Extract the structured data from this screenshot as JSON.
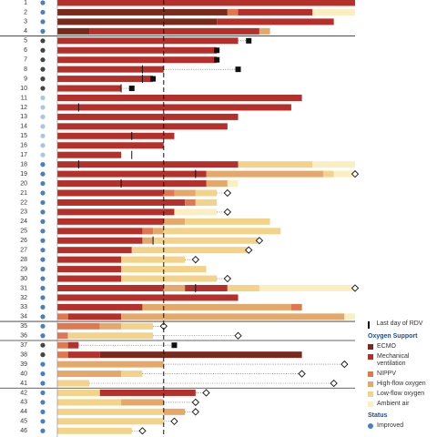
{
  "chart_data": {
    "type": "swimmer",
    "xlim": [
      0,
      28
    ],
    "rdv_reference_day": 10,
    "supports": [
      {
        "name": "ECMO",
        "color": "#7a2a1c"
      },
      {
        "name": "Mechanical ventilation",
        "color": "#b5302a"
      },
      {
        "name": "NIPPV",
        "color": "#e0774f"
      },
      {
        "name": "High-flow oxygen",
        "color": "#e3a86a"
      },
      {
        "name": "Low-flow oxygen",
        "color": "#f3d28a"
      },
      {
        "name": "Ambient air",
        "color": "#fbeec0"
      }
    ],
    "legend_title": "Oxygen Support",
    "rdv_label": "Last day of RDV",
    "status_title": "Status",
    "statuses": [
      {
        "name": "Improved",
        "color": "#4a7fc1"
      }
    ],
    "rows": [
      {
        "label": "1",
        "status_color": "#4a7fc1",
        "segments": [
          {
            "support": 1,
            "days": 28
          }
        ]
      },
      {
        "label": "2",
        "status_color": "#4a7fc1",
        "segments": [
          {
            "support": 0,
            "days": 16
          },
          {
            "support": 2,
            "days": 1
          },
          {
            "support": 1,
            "days": 7
          },
          {
            "support": 5,
            "days": 4
          }
        ]
      },
      {
        "label": "3",
        "status_color": "#4a7fc1",
        "segments": [
          {
            "support": 0,
            "days": 15
          },
          {
            "support": 1,
            "days": 11
          }
        ]
      },
      {
        "label": "4",
        "status_color": "#4a7fc1",
        "segments": [
          {
            "support": 0,
            "days": 3
          },
          {
            "support": 1,
            "days": 16
          },
          {
            "support": 3,
            "days": 1
          }
        ]
      },
      {
        "label": "5",
        "status_color": "#444444",
        "segments": [
          {
            "support": 1,
            "days": 17
          }
        ],
        "death": 18
      },
      {
        "label": "6",
        "status_color": "#444444",
        "segments": [
          {
            "support": 1,
            "days": 15
          }
        ],
        "death": 15
      },
      {
        "label": "7",
        "status_color": "#444444",
        "segments": [
          {
            "support": 1,
            "days": 15
          }
        ],
        "death": 15
      },
      {
        "label": "8",
        "status_color": "#444444",
        "segments": [
          {
            "support": 1,
            "days": 10
          }
        ],
        "death": 17,
        "rdv": 8
      },
      {
        "label": "9",
        "status_color": "#444444",
        "segments": [
          {
            "support": 1,
            "days": 9
          }
        ],
        "death": 9,
        "rdv": 8
      },
      {
        "label": "10",
        "status_color": "#444444",
        "segments": [
          {
            "support": 1,
            "days": 6
          }
        ],
        "death": 7,
        "rdv": 6
      },
      {
        "label": "11",
        "status_color": "#a9c6e4",
        "segments": [
          {
            "support": 1,
            "days": 23
          }
        ]
      },
      {
        "label": "12",
        "status_color": "#a9c6e4",
        "segments": [
          {
            "support": 1,
            "days": 22
          }
        ],
        "rdv": 2
      },
      {
        "label": "13",
        "status_color": "#a9c6e4",
        "segments": [
          {
            "support": 1,
            "days": 17
          }
        ]
      },
      {
        "label": "14",
        "status_color": "#a9c6e4",
        "segments": [
          {
            "support": 1,
            "days": 16
          }
        ]
      },
      {
        "label": "15",
        "status_color": "#a9c6e4",
        "segments": [
          {
            "support": 1,
            "days": 11
          }
        ],
        "rdv": 7
      },
      {
        "label": "16",
        "status_color": "#a9c6e4",
        "segments": [
          {
            "support": 1,
            "days": 10
          }
        ]
      },
      {
        "label": "17",
        "status_color": "#a9c6e4",
        "segments": [
          {
            "support": 1,
            "days": 6
          }
        ],
        "rdv": 7
      },
      {
        "label": "18",
        "status_color": "#4a7fc1",
        "segments": [
          {
            "support": 1,
            "days": 17
          },
          {
            "support": 4,
            "days": 7
          },
          {
            "support": 5,
            "days": 4
          }
        ],
        "rdv": 2
      },
      {
        "label": "19",
        "status_color": "#4a7fc1",
        "segments": [
          {
            "support": 1,
            "days": 14
          },
          {
            "support": 3,
            "days": 11
          },
          {
            "support": 4,
            "days": 1
          },
          {
            "support": 5,
            "days": 2
          }
        ],
        "discharge": 28,
        "rdv": 13
      },
      {
        "label": "20",
        "status_color": "#4a7fc1",
        "segments": [
          {
            "support": 1,
            "days": 14
          },
          {
            "support": 3,
            "days": 2
          },
          {
            "support": 5,
            "days": 1
          }
        ],
        "rdv": 6
      },
      {
        "label": "21",
        "status_color": "#4a7fc1",
        "segments": [
          {
            "support": 1,
            "days": 10
          },
          {
            "support": 2,
            "days": 1
          },
          {
            "support": 3,
            "days": 2
          },
          {
            "support": 4,
            "days": 2
          }
        ],
        "discharge": 16
      },
      {
        "label": "22",
        "status_color": "#4a7fc1",
        "segments": [
          {
            "support": 1,
            "days": 12
          },
          {
            "support": 2,
            "days": 1
          },
          {
            "support": 4,
            "days": 2
          }
        ]
      },
      {
        "label": "23",
        "status_color": "#4a7fc1",
        "segments": [
          {
            "support": 1,
            "days": 11
          },
          {
            "support": 5,
            "days": 4
          }
        ],
        "discharge": 16
      },
      {
        "label": "24",
        "status_color": "#4a7fc1",
        "segments": [
          {
            "support": 1,
            "days": 10
          },
          {
            "support": 3,
            "days": 2
          },
          {
            "support": 4,
            "days": 8
          }
        ]
      },
      {
        "label": "25",
        "status_color": "#4a7fc1",
        "segments": [
          {
            "support": 1,
            "days": 8
          },
          {
            "support": 2,
            "days": 1
          },
          {
            "support": 3,
            "days": 1
          },
          {
            "support": 4,
            "days": 11
          }
        ]
      },
      {
        "label": "26",
        "status_color": "#4a7fc1",
        "segments": [
          {
            "support": 1,
            "days": 8
          },
          {
            "support": 3,
            "days": 1
          },
          {
            "support": 4,
            "days": 10
          }
        ],
        "discharge": 19,
        "rdv": 9
      },
      {
        "label": "27",
        "status_color": "#4a7fc1",
        "segments": [
          {
            "support": 1,
            "days": 7
          },
          {
            "support": 4,
            "days": 11
          }
        ],
        "discharge": 18
      },
      {
        "label": "28",
        "status_color": "#4a7fc1",
        "segments": [
          {
            "support": 1,
            "days": 6
          },
          {
            "support": 4,
            "days": 6
          }
        ],
        "discharge": 13
      },
      {
        "label": "29",
        "status_color": "#4a7fc1",
        "segments": [
          {
            "support": 1,
            "days": 6
          },
          {
            "support": 4,
            "days": 8
          }
        ]
      },
      {
        "label": "30",
        "status_color": "#4a7fc1",
        "segments": [
          {
            "support": 1,
            "days": 6
          },
          {
            "support": 4,
            "days": 9
          }
        ],
        "discharge": 16
      },
      {
        "label": "31",
        "status_color": "#4a7fc1",
        "segments": [
          {
            "support": 1,
            "days": 10
          },
          {
            "support": 3,
            "days": 2
          },
          {
            "support": 1,
            "days": 4
          },
          {
            "support": 4,
            "days": 3
          },
          {
            "support": 5,
            "days": 9
          }
        ],
        "discharge": 28,
        "rdv": 13
      },
      {
        "label": "32",
        "status_color": "#4a7fc1",
        "segments": [
          {
            "support": 1,
            "days": 17
          }
        ]
      },
      {
        "label": "33",
        "status_color": "#4a7fc1",
        "segments": [
          {
            "support": 1,
            "days": 8
          },
          {
            "support": 3,
            "days": 14
          },
          {
            "support": 2,
            "days": 1
          }
        ]
      },
      {
        "label": "34",
        "status_color": "#4a7fc1",
        "segments": [
          {
            "support": 2,
            "days": 1
          },
          {
            "support": 1,
            "days": 5
          },
          {
            "support": 3,
            "days": 21
          },
          {
            "support": 5,
            "days": 1
          }
        ]
      },
      {
        "label": "35",
        "status_color": "#4a7fc1",
        "segments": [
          {
            "support": 2,
            "days": 4
          },
          {
            "support": 3,
            "days": 2
          },
          {
            "support": 4,
            "days": 3
          }
        ],
        "discharge": 10
      },
      {
        "label": "36",
        "status_color": "#4a7fc1",
        "segments": [
          {
            "support": 2,
            "days": 1
          },
          {
            "support": 4,
            "days": 8
          }
        ],
        "discharge": 17
      },
      {
        "label": "37",
        "status_color": "#444444",
        "segments": [
          {
            "support": 2,
            "days": 1
          },
          {
            "support": 1,
            "days": 1
          }
        ],
        "death": 11
      },
      {
        "label": "38",
        "status_color": "#444444",
        "segments": [
          {
            "support": 2,
            "days": 1
          },
          {
            "support": 1,
            "days": 3
          },
          {
            "support": 0,
            "days": 19
          }
        ]
      },
      {
        "label": "39",
        "status_color": "#4a7fc1",
        "segments": [
          {
            "support": 3,
            "days": 10
          }
        ],
        "discharge": 27
      },
      {
        "label": "40",
        "status_color": "#4a7fc1",
        "segments": [
          {
            "support": 3,
            "days": 6
          },
          {
            "support": 4,
            "days": 2
          }
        ],
        "discharge": 23
      },
      {
        "label": "41",
        "status_color": "#4a7fc1",
        "segments": [
          {
            "support": 4,
            "days": 3
          }
        ],
        "discharge": 26
      },
      {
        "label": "42",
        "status_color": "#4a7fc1",
        "segments": [
          {
            "support": 4,
            "days": 4
          },
          {
            "support": 1,
            "days": 9
          }
        ],
        "discharge": 14
      },
      {
        "label": "43",
        "status_color": "#4a7fc1",
        "segments": [
          {
            "support": 4,
            "days": 6
          },
          {
            "support": 3,
            "days": 4
          }
        ],
        "discharge": 13
      },
      {
        "label": "44",
        "status_color": "#4a7fc1",
        "segments": [
          {
            "support": 4,
            "days": 10
          },
          {
            "support": 3,
            "days": 2
          }
        ],
        "discharge": 13
      },
      {
        "label": "45",
        "status_color": "#4a7fc1",
        "segments": [
          {
            "support": 4,
            "days": 10
          }
        ],
        "discharge": 11
      },
      {
        "label": "46",
        "status_color": "#4a7fc1",
        "segments": [
          {
            "support": 4,
            "days": 7
          }
        ],
        "discharge": 8
      },
      {
        "label": "47",
        "status_color": "#4a7fc1",
        "segments": [
          {
            "support": 4,
            "days": 4
          }
        ],
        "discharge": 10
      }
    ],
    "group_breaks": [
      4,
      34,
      36,
      41
    ]
  }
}
